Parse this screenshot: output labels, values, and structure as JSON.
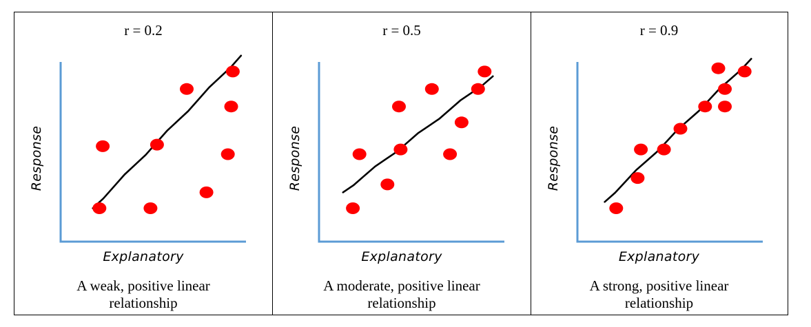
{
  "chart_data": [
    {
      "type": "scatter",
      "title": "r = 0.2",
      "xlabel": "Explanatory",
      "ylabel": "Response",
      "caption": [
        "A weak, positive linear",
        "relationship"
      ],
      "xlim": [
        0,
        10
      ],
      "ylim": [
        0,
        10
      ],
      "x": [
        1.1,
        4.2,
        4.6,
        6.4,
        9.1,
        9.2,
        8.9,
        7.6,
        1.3
      ],
      "y": [
        0.8,
        0.8,
        4.8,
        8.3,
        7.2,
        9.4,
        4.2,
        1.8,
        4.7
      ],
      "trendline": [
        [
          0.7,
          0.8
        ],
        [
          9.7,
          10.4
        ]
      ],
      "colors": {
        "points": "#ff0000",
        "axes": "#5b9bd5",
        "trendline": "#000000"
      }
    },
    {
      "type": "scatter",
      "title": "r = 0.5",
      "xlabel": "Explanatory",
      "ylabel": "Response",
      "caption": [
        "A moderate, positive linear",
        "relationship"
      ],
      "xlim": [
        0,
        10
      ],
      "ylim": [
        0,
        10
      ],
      "x": [
        0.8,
        1.2,
        2.9,
        3.6,
        3.7,
        5.6,
        6.7,
        7.4,
        8.4,
        8.8
      ],
      "y": [
        0.8,
        4.2,
        2.3,
        7.2,
        4.5,
        8.3,
        4.2,
        6.2,
        8.3,
        9.4
      ],
      "trendline": [
        [
          0.2,
          1.8
        ],
        [
          9.3,
          9.1
        ]
      ],
      "colors": {
        "points": "#ff0000",
        "axes": "#5b9bd5",
        "trendline": "#000000"
      }
    },
    {
      "type": "scatter",
      "title": "r = 0.9",
      "xlabel": "Explanatory",
      "ylabel": "Response",
      "caption": [
        "A strong, positive linear",
        "relationship"
      ],
      "xlim": [
        0,
        10
      ],
      "ylim": [
        0,
        10
      ],
      "x": [
        1.1,
        2.4,
        2.6,
        4.0,
        5.0,
        6.5,
        7.3,
        7.7,
        7.7,
        8.9
      ],
      "y": [
        0.8,
        2.7,
        4.5,
        4.5,
        5.8,
        7.2,
        9.6,
        8.3,
        7.2,
        9.4
      ],
      "trendline": [
        [
          0.4,
          1.2
        ],
        [
          9.3,
          10.2
        ]
      ],
      "colors": {
        "points": "#ff0000",
        "axes": "#5b9bd5",
        "trendline": "#000000"
      }
    }
  ]
}
